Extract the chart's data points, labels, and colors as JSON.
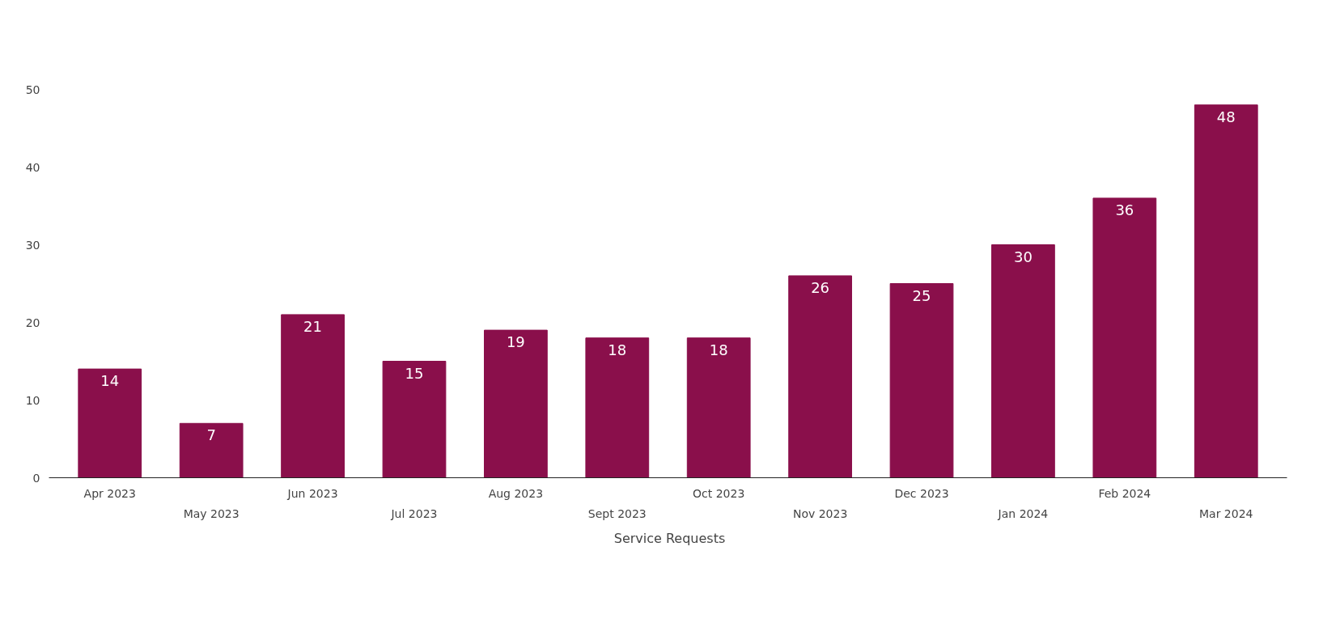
{
  "chart_data": {
    "type": "bar",
    "categories": [
      "Apr 2023",
      "May 2023",
      "Jun 2023",
      "Jul 2023",
      "Aug 2023",
      "Sept 2023",
      "Oct 2023",
      "Nov 2023",
      "Dec 2023",
      "Jan 2024",
      "Feb 2024",
      "Mar 2024"
    ],
    "series": [
      {
        "name": "Service Requests",
        "color": "#8a0f4b",
        "values": [
          14,
          7,
          21,
          15,
          19,
          18,
          18,
          26,
          25,
          30,
          36,
          48
        ]
      }
    ],
    "ylim": [
      0,
      50
    ],
    "yticks": [
      0,
      10,
      20,
      30,
      40,
      50
    ],
    "grid": false,
    "legend": "bottom",
    "data_labels": true
  }
}
